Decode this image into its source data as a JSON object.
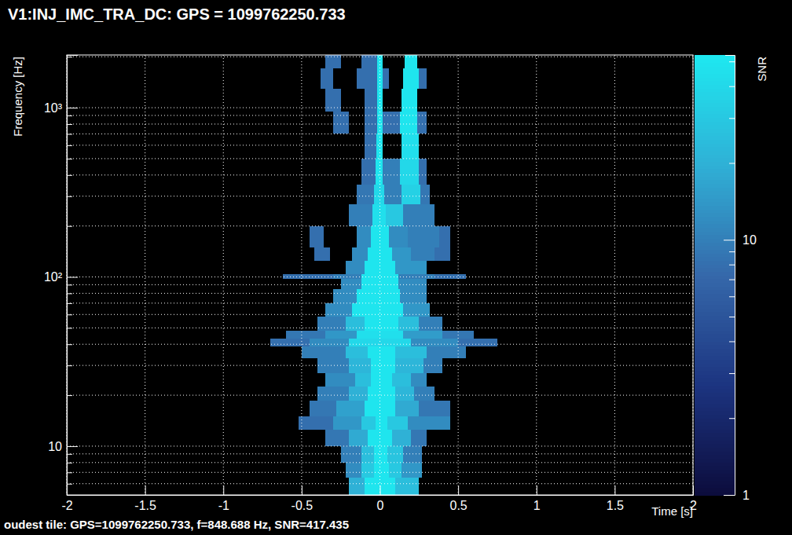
{
  "chart_data": {
    "type": "heatmap",
    "title": "V1:INJ_IMC_TRA_DC: GPS = 1099762250.733",
    "x_label": "Time [s]",
    "y_label": "Frequency [Hz]",
    "annotation": "oudest tile: GPS=1099762250.733, f=848.688 Hz, SNR=417.435",
    "xlim": [
      -2,
      2
    ],
    "xticks": [
      -2,
      -1.5,
      -1,
      -0.5,
      0,
      0.5,
      1,
      1.5,
      2
    ],
    "ylim": [
      5.15,
      2048
    ],
    "yticks": [
      {
        "value": 6,
        "label": null
      },
      {
        "value": 7,
        "label": null
      },
      {
        "value": 8,
        "label": null
      },
      {
        "value": 9,
        "label": null
      },
      10,
      {
        "value": 20,
        "label": null
      },
      {
        "value": 30,
        "label": null
      },
      {
        "value": 40,
        "label": null
      },
      {
        "value": 50,
        "label": null
      },
      {
        "value": 60,
        "label": null
      },
      {
        "value": 70,
        "label": null
      },
      {
        "value": 80,
        "label": null
      },
      {
        "value": 90,
        "label": null
      },
      {
        "value": 100,
        "label": "10²"
      },
      {
        "value": 200,
        "label": null
      },
      {
        "value": 300,
        "label": null
      },
      {
        "value": 400,
        "label": null
      },
      {
        "value": 500,
        "label": null
      },
      {
        "value": 600,
        "label": null
      },
      {
        "value": 700,
        "label": null
      },
      {
        "value": 800,
        "label": null
      },
      {
        "value": 900,
        "label": null
      },
      {
        "value": 1000,
        "label": "10³"
      },
      {
        "value": 2000,
        "label": null
      }
    ],
    "log": "y",
    "grid": true,
    "colorbar": {
      "label": "SNR",
      "range": [
        1,
        53
      ],
      "ticks": [
        1,
        {
          "value": 2,
          "label": null
        },
        {
          "value": 3,
          "label": null
        },
        {
          "value": 4,
          "label": null
        },
        {
          "value": 5,
          "label": null
        },
        {
          "value": 6,
          "label": null
        },
        {
          "value": 7,
          "label": null
        },
        {
          "value": 8,
          "label": null
        },
        {
          "value": 9,
          "label": null
        },
        10,
        {
          "value": 20,
          "label": null
        },
        {
          "value": 30,
          "label": null
        },
        {
          "value": 40,
          "label": null
        },
        {
          "value": 50,
          "label": null
        }
      ]
    },
    "rows": [
      {
        "f": [
          5.15,
          6.5
        ],
        "t": [
          -0.2,
          -0.1,
          0.1,
          0.25
        ],
        "snr": [
          20,
          50,
          25
        ]
      },
      {
        "f": [
          6.5,
          8
        ],
        "t": [
          -0.22,
          -0.12,
          -0.04,
          0.06,
          0.14,
          0.27
        ],
        "snr": [
          12,
          30,
          50,
          30,
          14
        ]
      },
      {
        "f": [
          8,
          10
        ],
        "t": [
          -0.25,
          -0.12,
          -0.04,
          0.05,
          0.15,
          0.27
        ],
        "snr": [
          10,
          25,
          50,
          28,
          10
        ]
      },
      {
        "f": [
          10,
          12.5
        ],
        "t": [
          -0.35,
          -0.2,
          -0.08,
          0.08,
          0.2,
          0.3
        ],
        "snr": [
          9,
          18,
          50,
          20,
          9
        ]
      },
      {
        "f": [
          12.5,
          15
        ],
        "t": [
          -0.52,
          -0.3,
          -0.12,
          -0.03,
          0.05,
          0.18,
          0.45
        ],
        "snr": [
          8,
          14,
          30,
          50,
          30,
          12
        ]
      },
      {
        "f": [
          15,
          18.5
        ],
        "t": [
          -0.45,
          -0.28,
          -0.1,
          0.1,
          0.25,
          0.45
        ],
        "snr": [
          9,
          16,
          50,
          18,
          9
        ]
      },
      {
        "f": [
          18.5,
          22.5
        ],
        "t": [
          -0.4,
          -0.2,
          -0.08,
          0.1,
          0.22,
          0.35
        ],
        "snr": [
          10,
          20,
          50,
          22,
          10
        ]
      },
      {
        "f": [
          22.5,
          27
        ],
        "t": [
          -0.35,
          -0.16,
          -0.06,
          0.08,
          0.2,
          0.3
        ],
        "snr": [
          12,
          25,
          50,
          25,
          12
        ]
      },
      {
        "f": [
          27,
          33
        ],
        "t": [
          -0.4,
          -0.2,
          -0.06,
          0.1,
          0.28,
          0.4
        ],
        "snr": [
          10,
          22,
          50,
          22,
          10
        ]
      },
      {
        "f": [
          33,
          39
        ],
        "t": [
          -0.5,
          -0.22,
          -0.08,
          0.1,
          0.3,
          0.55
        ],
        "snr": [
          10,
          25,
          50,
          25,
          10
        ]
      },
      {
        "f": [
          39,
          43
        ],
        "t": [
          -0.7,
          -0.45,
          -0.2,
          0.2,
          0.5,
          0.75
        ],
        "snr": [
          8,
          12,
          40,
          12,
          8
        ]
      },
      {
        "f": [
          43,
          48
        ],
        "t": [
          -0.6,
          -0.35,
          -0.15,
          0.15,
          0.4,
          0.6
        ],
        "snr": [
          9,
          14,
          45,
          15,
          9
        ]
      },
      {
        "f": [
          48,
          58
        ],
        "t": [
          -0.4,
          -0.22,
          -0.1,
          0.12,
          0.25,
          0.4
        ],
        "snr": [
          10,
          25,
          50,
          25,
          10
        ]
      },
      {
        "f": [
          58,
          70
        ],
        "t": [
          -0.35,
          -0.18,
          0.15,
          0.32
        ],
        "snr": [
          12,
          50,
          14
        ]
      },
      {
        "f": [
          70,
          85
        ],
        "t": [
          -0.3,
          -0.15,
          0.13,
          0.3
        ],
        "snr": [
          12,
          50,
          12
        ]
      },
      {
        "f": [
          85,
          97
        ],
        "t": [
          -0.25,
          -0.12,
          0.12,
          0.3
        ],
        "snr": [
          12,
          50,
          12
        ]
      },
      {
        "f": [
          97,
          104
        ],
        "t": [
          -0.62,
          -0.3,
          -0.12,
          0.12,
          0.35,
          0.55
        ],
        "snr": [
          8,
          10,
          50,
          10,
          8
        ]
      },
      {
        "f": [
          104,
          125
        ],
        "t": [
          -0.22,
          -0.1,
          0.1,
          0.3
        ],
        "snr": [
          12,
          50,
          14
        ]
      },
      {
        "f": [
          125,
          150
        ],
        "t": [
          -0.42,
          -0.32,
          -0.18,
          -0.08,
          0.08,
          0.2,
          0.35,
          0.45
        ],
        "snr": [
          8,
          null,
          12,
          50,
          14,
          10,
          8
        ]
      },
      {
        "f": [
          150,
          200
        ],
        "t": [
          -0.45,
          -0.36,
          -0.15,
          -0.06,
          0.06,
          0.18,
          0.38,
          0.45
        ],
        "snr": [
          8,
          null,
          12,
          50,
          12,
          10,
          8
        ]
      },
      {
        "f": [
          200,
          270
        ],
        "t": [
          -0.2,
          -0.05,
          0.04,
          0.15,
          0.35
        ],
        "snr": [
          10,
          45,
          30,
          10
        ]
      },
      {
        "f": [
          270,
          350
        ],
        "t": [
          -0.15,
          -0.04,
          0.03,
          0.14,
          0.26,
          0.32
        ],
        "snr": [
          9,
          40,
          10,
          35,
          9
        ]
      },
      {
        "f": [
          350,
          500
        ],
        "t": [
          -0.12,
          -0.03,
          0.02,
          0.13,
          0.25,
          0.3
        ],
        "snr": [
          8,
          50,
          10,
          40,
          8
        ]
      },
      {
        "f": [
          500,
          700
        ],
        "t": [
          -0.1,
          -0.025,
          0.02,
          0.14,
          0.25
        ],
        "snr": [
          8,
          50,
          null,
          45
        ]
      },
      {
        "f": [
          700,
          950
        ],
        "t": [
          -0.3,
          -0.2,
          -0.1,
          -0.02,
          0.02,
          0.13,
          0.24,
          0.3
        ],
        "snr": [
          8,
          null,
          8,
          50,
          8,
          50,
          8
        ]
      },
      {
        "f": [
          950,
          1300
        ],
        "t": [
          -0.35,
          -0.25,
          -0.1,
          -0.02,
          0.02,
          0.14,
          0.24
        ],
        "snr": [
          8,
          null,
          8,
          50,
          null,
          50
        ]
      },
      {
        "f": [
          1300,
          1700
        ],
        "t": [
          -0.38,
          -0.3,
          -0.15,
          -0.02,
          0.02,
          0.06,
          0.15,
          0.25,
          0.3
        ],
        "snr": [
          8,
          null,
          8,
          50,
          8,
          null,
          50,
          8
        ]
      },
      {
        "f": [
          1700,
          2048
        ],
        "t": [
          -0.35,
          -0.25,
          -0.12,
          -0.02,
          0.02,
          0.12,
          0.16,
          0.24
        ],
        "snr": [
          8,
          null,
          8,
          50,
          null,
          null,
          50
        ]
      }
    ]
  }
}
